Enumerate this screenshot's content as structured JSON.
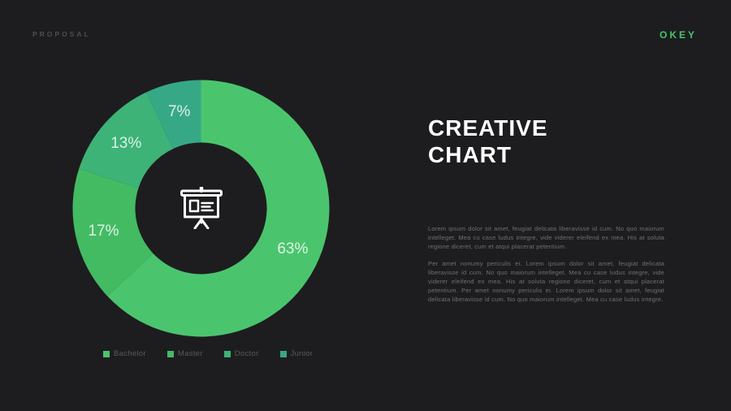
{
  "page": {
    "background": "#1d1d1f"
  },
  "header": {
    "left_label": "PROPOSAL",
    "brand": "OKEY",
    "brand_color": "#45c56c"
  },
  "title": {
    "line1": "CREATIVE",
    "line2": "CHART"
  },
  "paragraphs": {
    "p1": "Lorem ipsum dolor sit amet, feugiat delicata liberavisse id cum. No quo maiorum intelleget. Mea cu case ludus integre, vide viderer eleifend ex mea. His at soluta regione diceret, cum et atqui placerat petentium.",
    "p2": "Per amet nonumy periculis ei. Lorem ipsum dolor sit amet, feugiat delicata liberavisse id cum. No quo maiorum intelleget. Mea cu case ludus integre, vide viderer eleifend ex mea. His at soluta regione diceret, cum et atqui placerat petentium. Per amet nonumy periculis ei. Lorem ipsum dolor sit amet, feugiat delicata liberavisse id cum. No quo maiorum intelleget. Mea cu case ludus integre."
  },
  "chart_data": {
    "type": "pie",
    "subtype": "donut",
    "title": "",
    "categories": [
      "Bachelor",
      "Master",
      "Doctor",
      "Junior"
    ],
    "values": [
      63,
      17,
      13,
      7
    ],
    "labels": [
      "63%",
      "17%",
      "13%",
      "7%"
    ],
    "colors": [
      "#4ac56d",
      "#43bb63",
      "#3db377",
      "#37a886"
    ],
    "start_angle_deg": 0,
    "direction": "clockwise",
    "outer_radius": 158,
    "inner_radius": 81,
    "label_radius": 123,
    "label_font_size": 19,
    "label_color": "rgba(255,255,255,0.82)",
    "legend_position": "bottom",
    "center_icon": "presentation-board"
  },
  "legend": {
    "items": [
      {
        "label": "Bachelor",
        "color": "#4ac56d"
      },
      {
        "label": "Master",
        "color": "#43bb63"
      },
      {
        "label": "Doctor",
        "color": "#3db377"
      },
      {
        "label": "Junior",
        "color": "#37a886"
      }
    ]
  }
}
